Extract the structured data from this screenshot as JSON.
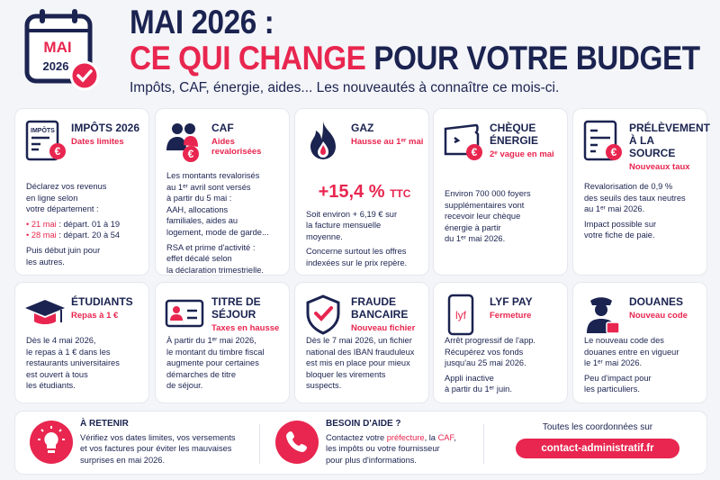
{
  "header": {
    "calendar_month": "MAI",
    "calendar_year": "2026",
    "title_line1": "MAI 2026 :",
    "title_red": "CE QUI CHANGE",
    "title_rest": " POUR VOTRE BUDGET",
    "subtitle": "Impôts, CAF, énergie, aides... Les nouveautés à connaître ce mois-ci."
  },
  "colors": {
    "navy": "#1b2350",
    "accent": "#e8264f"
  },
  "cards": [
    {
      "icon": "tax-document-icon",
      "title": "IMPÔTS 2026",
      "subtitle": "Dates limites",
      "icon_label": "IMPÔTS",
      "blocks": [
        {
          "lines": [
            "Déclarez vos revenus",
            "en ligne selon",
            "votre département :"
          ]
        },
        {
          "items": [
            {
              "date": "21 mai",
              "text": " : départ. 01 à 19"
            },
            {
              "date": "28 mai",
              "text": " : départ. 20 à 54"
            }
          ]
        },
        {
          "lines": [
            "Puis début juin pour",
            "les autres."
          ]
        }
      ]
    },
    {
      "icon": "family-icon",
      "title": "CAF",
      "subtitle": "Aides revalorisées",
      "blocks": [
        {
          "lines": [
            "Les montants revalorisés",
            "au 1ᵉʳ avril sont versés",
            "à partir du 5 mai :",
            "AAH, allocations",
            "familiales, aides au",
            "logement, mode de garde..."
          ]
        },
        {
          "lines": [
            "RSA et prime d'activité :",
            "effet décalé selon",
            "la déclaration trimestrielle."
          ]
        }
      ]
    },
    {
      "icon": "flame-icon",
      "title": "GAZ",
      "subtitle": "Hausse au 1ᵉʳ mai",
      "big": "+15,4 %",
      "big_unit": "TTC",
      "blocks": [
        {
          "lines": [
            "Soit environ + 6,19 € sur",
            "la facture mensuelle",
            "moyenne."
          ]
        },
        {
          "lines": [
            "Concerne surtout les offres",
            "indexées sur le prix repère."
          ]
        }
      ]
    },
    {
      "icon": "wallet-icon",
      "title": "CHÈQUE ÉNERGIE",
      "subtitle": "2ᵉ vague en mai",
      "blocks": [
        {
          "lines": [
            "Environ 700 000 foyers",
            "supplémentaires vont",
            "recevoir leur chèque",
            "énergie à partir",
            "du 1ᵉʳ mai 2026."
          ]
        }
      ]
    },
    {
      "icon": "payslip-icon",
      "title": "PRÉLÈVEMENT À LA SOURCE",
      "subtitle": "Nouveaux taux",
      "blocks": [
        {
          "lines": [
            "Revalorisation de 0,9 %",
            "des seuils des taux neutres",
            "au 1ᵉʳ mai 2026."
          ]
        },
        {
          "lines": [
            "Impact possible sur",
            "votre fiche de paie."
          ]
        }
      ]
    },
    {
      "icon": "graduation-cap-icon",
      "title": "ÉTUDIANTS",
      "subtitle": "Repas à 1 €",
      "blocks": [
        {
          "lines": [
            "Dès le 4 mai 2026,",
            "le repas à 1 € dans les",
            "restaurants universitaires",
            "est ouvert à tous",
            "les étudiants."
          ]
        }
      ]
    },
    {
      "icon": "id-card-icon",
      "title": "TITRE DE SÉJOUR",
      "subtitle": "Taxes en hausse",
      "blocks": [
        {
          "lines": [
            "À partir du 1ᵉʳ mai 2026,",
            "le montant du timbre fiscal",
            "augmente pour certaines",
            "démarches de titre",
            "de séjour."
          ]
        }
      ]
    },
    {
      "icon": "shield-check-icon",
      "title": "FRAUDE BANCAIRE",
      "subtitle": "Nouveau fichier",
      "blocks": [
        {
          "lines": [
            "Dès le 7 mai 2026, un fichier",
            "national des IBAN frauduleux",
            "est mis en place pour mieux",
            "bloquer les virements",
            "suspects."
          ]
        }
      ]
    },
    {
      "icon": "phone-app-icon",
      "title": "LYF PAY",
      "subtitle": "Fermeture",
      "icon_label": "lyf",
      "blocks": [
        {
          "lines": [
            "Arrêt progressif de l'app.",
            "Récupérez vos fonds",
            "jusqu'au 25 mai 2026."
          ]
        },
        {
          "lines": [
            "Appli inactive",
            "à partir du 1ᵉʳ juin."
          ]
        }
      ]
    },
    {
      "icon": "customs-officer-icon",
      "title": "DOUANES",
      "subtitle": "Nouveau code",
      "blocks": [
        {
          "lines": [
            "Le nouveau code des",
            "douanes entre en vigueur",
            "le 1ᵉʳ mai 2026."
          ]
        },
        {
          "lines": [
            "Peu d'impact pour",
            "les particuliers."
          ]
        }
      ]
    }
  ],
  "bottom": {
    "remember": {
      "title": "À RETENIR",
      "lines": [
        "Vérifiez vos dates limites, vos versements",
        "et vos factures pour éviter les mauvaises",
        "surprises en mai 2026."
      ]
    },
    "help": {
      "title": "BESOIN D'AIDE ?",
      "l1a": "Contactez votre ",
      "l1b": "préfecture",
      "l1c": ", la ",
      "l1d": "CAF",
      "l1e": ",",
      "l2": "les impôts ou votre fournisseur",
      "l3": "pour plus d'informations."
    },
    "contact_lead": "Toutes les coordonnées sur",
    "contact_link": "contact-administratif.fr"
  }
}
